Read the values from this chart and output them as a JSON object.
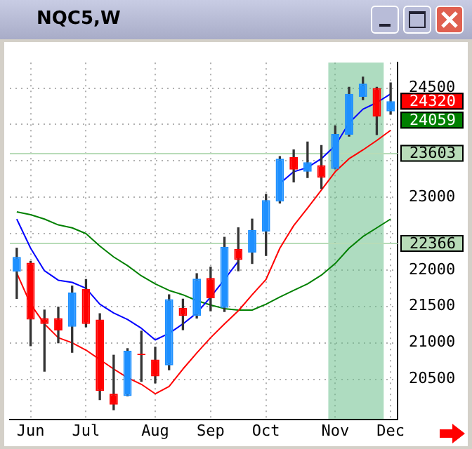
{
  "chart_data": {
    "type": "candlestick",
    "title": "NQC5,W",
    "categories": [
      null,
      "Jun",
      null,
      null,
      null,
      "Jul",
      null,
      null,
      null,
      null,
      "Aug",
      null,
      null,
      null,
      "Sep",
      null,
      null,
      null,
      "Oct",
      null,
      null,
      null,
      null,
      "Nov",
      null,
      null,
      null,
      "Dec"
    ],
    "ohlc": [
      [
        21980,
        22300,
        21610,
        22180
      ],
      [
        22100,
        22120,
        20960,
        21320
      ],
      [
        21340,
        21450,
        20610,
        21260
      ],
      [
        21340,
        21490,
        21000,
        21170
      ],
      [
        21220,
        21780,
        20870,
        21690
      ],
      [
        21740,
        21870,
        21220,
        21260
      ],
      [
        21320,
        21400,
        20220,
        20340
      ],
      [
        20300,
        20830,
        20080,
        20150
      ],
      [
        20270,
        20920,
        20270,
        20890
      ],
      [
        20850,
        21160,
        20470,
        20830
      ],
      [
        20770,
        20940,
        20450,
        20540
      ],
      [
        20690,
        21660,
        20630,
        21600
      ],
      [
        21480,
        21600,
        21180,
        21370
      ],
      [
        21370,
        21950,
        21340,
        21880
      ],
      [
        21890,
        22040,
        21440,
        21610
      ],
      [
        21480,
        22450,
        21430,
        22320
      ],
      [
        22290,
        22580,
        21990,
        22140
      ],
      [
        22240,
        22700,
        22090,
        22550
      ],
      [
        22530,
        23040,
        22200,
        22960
      ],
      [
        22940,
        23560,
        22920,
        23530
      ],
      [
        23550,
        23650,
        23210,
        23380
      ],
      [
        23350,
        23760,
        23270,
        23480
      ],
      [
        23440,
        23710,
        23120,
        23270
      ],
      [
        23390,
        23980,
        23390,
        23870
      ],
      [
        23860,
        24510,
        23840,
        24420
      ],
      [
        24380,
        24650,
        24340,
        24560
      ],
      [
        24500,
        24510,
        23860,
        24110
      ],
      [
        24180,
        24570,
        24140,
        24320
      ]
    ],
    "colors": [
      "#1e90ff",
      "#ff0000",
      "#ff0000",
      "#ff0000",
      "#1e90ff",
      "#ff0000",
      "#ff0000",
      "#ff0000",
      "#1e90ff",
      "#ff0000",
      "#ff0000",
      "#1e90ff",
      "#ff0000",
      "#1e90ff",
      "#ff0000",
      "#1e90ff",
      "#ff0000",
      "#1e90ff",
      "#1e90ff",
      "#1e90ff",
      "#ff0000",
      "#1e90ff",
      "#ff0000",
      "#1e90ff",
      "#1e90ff",
      "#1e90ff",
      "#ff0000",
      "#1e90ff"
    ],
    "series": [
      {
        "type": "line",
        "color": "#0000ff",
        "values": [
          22700,
          22300,
          21990,
          21860,
          21830,
          21750,
          21530,
          21410,
          21320,
          21200,
          21040,
          21130,
          21260,
          21410,
          21630,
          21870,
          22120,
          null,
          null,
          23190,
          23350,
          23410,
          23530,
          23710,
          24020,
          24210,
          24300,
          24420
        ]
      },
      {
        "type": "line",
        "color": "#ff0000",
        "values": [
          21960,
          21530,
          21260,
          21070,
          21000,
          20900,
          20770,
          20640,
          20520,
          20430,
          20300,
          20400,
          20640,
          20860,
          21070,
          21260,
          21440,
          21660,
          21870,
          22300,
          22610,
          22850,
          23100,
          23350,
          23530,
          23650,
          23780,
          23920
        ]
      },
      {
        "type": "line",
        "color": "#008000",
        "values": [
          22800,
          22760,
          22700,
          22620,
          22580,
          22500,
          22330,
          22180,
          22060,
          21920,
          21810,
          21720,
          21660,
          21580,
          21520,
          21470,
          21450,
          21450,
          21530,
          21630,
          21720,
          21810,
          21930,
          22090,
          22300,
          22460,
          22580,
          22700
        ]
      }
    ],
    "ylim": [
      19950,
      24850
    ],
    "yticks": [
      20500,
      21000,
      21500,
      22000,
      {
        "value": 22500,
        "label": null
      },
      23000,
      {
        "value": 23500,
        "label": null
      },
      {
        "value": 24000,
        "label": null
      },
      24500
    ],
    "grid": true,
    "legend": false,
    "ref_lines": [
      {
        "axis": "y",
        "value": 23603,
        "label": "23603",
        "color": "#b8dcb8"
      },
      {
        "axis": "y",
        "value": 22366,
        "label": "22366",
        "color": "#b8dcb8"
      }
    ],
    "bands": [
      {
        "axis": "x",
        "from": "Nov",
        "to": "Dec",
        "color": "#6cc08c"
      }
    ],
    "annotations": [
      {
        "text": "24320",
        "x": "Dec",
        "y": 24320
      },
      "24059"
    ]
  }
}
